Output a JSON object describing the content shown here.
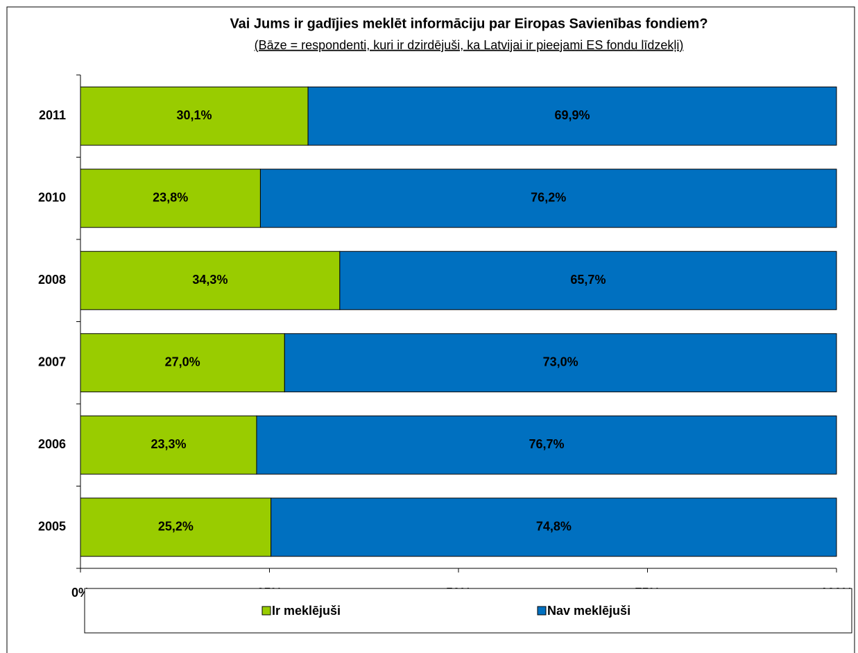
{
  "chart_data": {
    "type": "stacked_barh",
    "title": "Vai Jums ir gadījies meklēt informāciju par Eiropas Savienības fondiem?",
    "subtitle": "(Bāze = respondenti, kuri ir dzirdējuši, ka Latvijai ir pieejami ES fondu līdzekļi)",
    "categories": [
      "2011",
      "2010",
      "2008",
      "2007",
      "2006",
      "2005"
    ],
    "series": [
      {
        "name": "Ir meklējuši",
        "color": "#99cc00",
        "values": [
          30.1,
          23.8,
          34.3,
          27.0,
          23.3,
          25.2
        ],
        "value_labels": [
          "30,1%",
          "23,8%",
          "34,3%",
          "27,0%",
          "23,3%",
          "25,2%"
        ]
      },
      {
        "name": "Nav meklējuši",
        "color": "#0070c0",
        "values": [
          69.9,
          76.2,
          65.7,
          73.0,
          76.7,
          74.8
        ],
        "value_labels": [
          "69,9%",
          "76,2%",
          "65,7%",
          "73,0%",
          "76,7%",
          "74,8%"
        ]
      }
    ],
    "xlim": [
      0,
      100
    ],
    "xticks": [
      {
        "value": 0,
        "label": "0%"
      },
      {
        "value": 25,
        "label": "25%"
      },
      {
        "value": 50,
        "label": "50%"
      },
      {
        "value": 75,
        "label": "75%"
      },
      {
        "value": 100,
        "label": "100%"
      }
    ],
    "legend": "bottom"
  }
}
